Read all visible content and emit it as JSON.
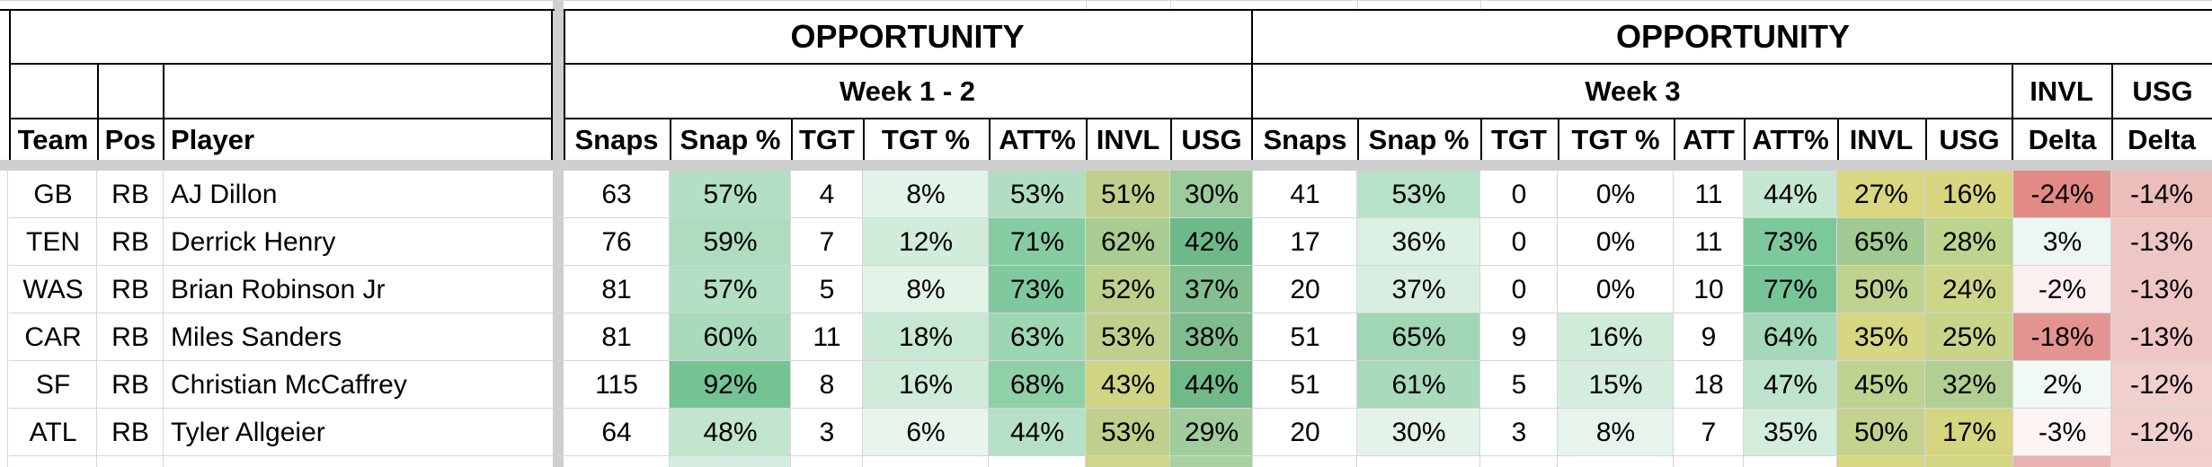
{
  "sections": [
    {
      "title": "OPPORTUNITY",
      "subtitle": "Week 1 - 2"
    },
    {
      "title": "OPPORTUNITY",
      "subtitle": "Week 3"
    }
  ],
  "delta_headers": {
    "invl_top": "INVL",
    "usg_top": "USG",
    "invl_bottom": "Delta",
    "usg_bottom": "Delta"
  },
  "columns": [
    "Team",
    "Pos",
    "Player",
    "Snaps",
    "Snap %",
    "TGT",
    "TGT %",
    "ATT%",
    "INVL",
    "USG",
    "Snaps",
    "Snap %",
    "TGT",
    "TGT %",
    "ATT",
    "ATT%",
    "INVL",
    "USG"
  ],
  "rows": [
    [
      "GB",
      "RB",
      "AJ Dillon",
      "63",
      "57%",
      "4",
      "8%",
      "53%",
      "51%",
      "30%",
      "41",
      "53%",
      "0",
      "0%",
      "11",
      "44%",
      "27%",
      "16%",
      "-24%",
      "-14%"
    ],
    [
      "TEN",
      "RB",
      "Derrick Henry",
      "76",
      "59%",
      "7",
      "12%",
      "71%",
      "62%",
      "42%",
      "17",
      "36%",
      "0",
      "0%",
      "11",
      "73%",
      "65%",
      "28%",
      "3%",
      "-13%"
    ],
    [
      "WAS",
      "RB",
      "Brian Robinson Jr",
      "81",
      "57%",
      "5",
      "8%",
      "73%",
      "52%",
      "37%",
      "20",
      "37%",
      "0",
      "0%",
      "10",
      "77%",
      "50%",
      "24%",
      "-2%",
      "-13%"
    ],
    [
      "CAR",
      "RB",
      "Miles Sanders",
      "81",
      "60%",
      "11",
      "18%",
      "63%",
      "53%",
      "38%",
      "51",
      "65%",
      "9",
      "16%",
      "9",
      "64%",
      "35%",
      "25%",
      "-18%",
      "-13%"
    ],
    [
      "SF",
      "RB",
      "Christian McCaffrey",
      "115",
      "92%",
      "8",
      "16%",
      "68%",
      "43%",
      "44%",
      "51",
      "61%",
      "5",
      "15%",
      "18",
      "47%",
      "45%",
      "32%",
      "2%",
      "-12%"
    ],
    [
      "ATL",
      "RB",
      "Tyler Allgeier",
      "64",
      "48%",
      "3",
      "6%",
      "44%",
      "53%",
      "29%",
      "20",
      "30%",
      "3",
      "8%",
      "7",
      "35%",
      "50%",
      "17%",
      "-3%",
      "-12%"
    ]
  ],
  "cell_colors": [
    [
      null,
      null,
      null,
      null,
      "#b3dfc4",
      null,
      "#e2f3e8",
      "#b1dec3",
      "#c0d08c",
      "#9ccc9d",
      null,
      "#b8e1c9",
      null,
      null,
      null,
      "#c6e8d3",
      "#d9d781",
      "#d8d680",
      "#e28b86",
      "#ebbebb"
    ],
    [
      null,
      null,
      null,
      null,
      "#aedcbf",
      null,
      "#d2ecdb",
      "#86cca3",
      "#a8cc91",
      "#6eb989",
      null,
      "#dcf0e3",
      null,
      null,
      null,
      "#7ec99c",
      "#a1ca93",
      "#bdd48d",
      "#edf7f1",
      "#eec7c5"
    ],
    [
      null,
      null,
      null,
      null,
      "#b3dfc4",
      null,
      "#e2f3e8",
      "#80c99e",
      "#bed08d",
      "#83bf90",
      null,
      "#d9eee1",
      null,
      null,
      null,
      "#77c597",
      "#bfd38f",
      "#cdd688",
      "#fbeff0",
      "#eec7c5"
    ],
    [
      null,
      null,
      null,
      null,
      "#a9dabb",
      null,
      "#c9e8d4",
      "#9dd6b3",
      "#c0d08c",
      "#7fbd8f",
      null,
      "#a0d6b4",
      null,
      "#cfebd9",
      null,
      "#a3d9b8",
      "#d7d682",
      "#c8d48a",
      "#e39491",
      "#eec7c5"
    ],
    [
      null,
      null,
      null,
      null,
      "#74c493",
      null,
      "#cfebd9",
      "#8fd0a8",
      "#d0d586",
      "#70ba8a",
      null,
      "#a8dabb",
      null,
      "#d5edde",
      null,
      "#bde3cc",
      "#bed38f",
      "#b1cf90",
      "#f0f9f4",
      "#f0cfcd"
    ],
    [
      null,
      null,
      null,
      null,
      "#c1e5cf",
      null,
      "#e8f5ec",
      "#b6e0c7",
      "#c0d08c",
      "#a1cd9c",
      null,
      "#e3f3e9",
      null,
      "#e6f4eb",
      null,
      "#d3ecdc",
      "#c3d38d",
      "#d6d681",
      "#fdf4f4",
      "#f0cfcd"
    ]
  ]
}
